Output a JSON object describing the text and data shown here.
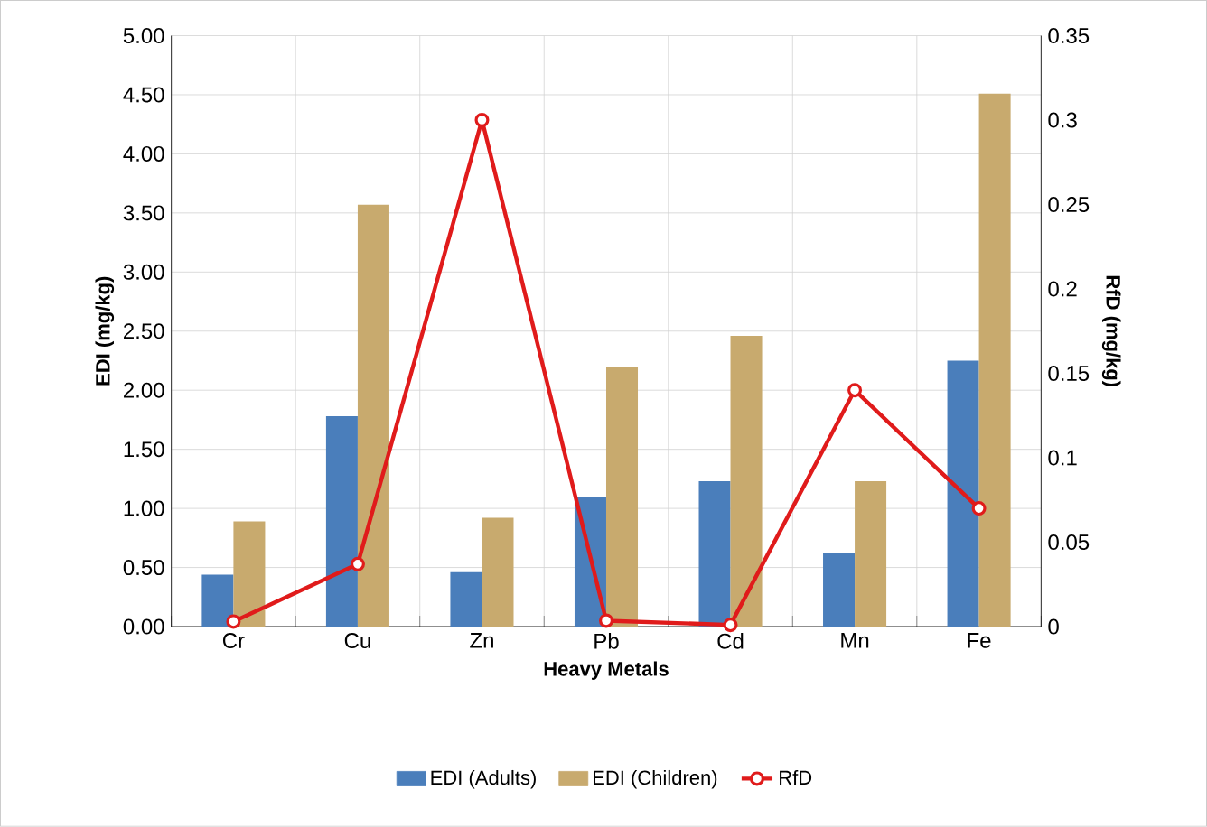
{
  "chart_data": {
    "type": "bar",
    "xlabel": "Heavy Metals",
    "ylabel": "EDI (mg/kg)",
    "y2label": "RfD (mg/kg)",
    "categories": [
      "Cr",
      "Cu",
      "Zn",
      "Pb",
      "Cd",
      "Mn",
      "Fe"
    ],
    "series": [
      {
        "name": "EDI (Adults)",
        "color": "#4a7ebb",
        "values": [
          0.44,
          1.78,
          0.46,
          1.1,
          1.23,
          0.62,
          2.25
        ]
      },
      {
        "name": "EDI (Children)",
        "color": "#c8aa6e",
        "values": [
          0.89,
          3.57,
          0.92,
          2.2,
          2.46,
          1.23,
          4.51
        ]
      },
      {
        "name": "RfD",
        "type": "line",
        "axis": "y2",
        "color": "#e01b1b",
        "marker": "circle",
        "line_style": "solid",
        "values": [
          0.003,
          0.037,
          0.3,
          0.0035,
          0.001,
          0.14,
          0.07
        ]
      }
    ],
    "ylim": [
      0,
      5
    ],
    "yticks": [
      {
        "value": 0,
        "label": "0.00"
      },
      {
        "value": 0.5,
        "label": "0.50"
      },
      {
        "value": 1,
        "label": "1.00"
      },
      {
        "value": 1.5,
        "label": "1.50"
      },
      {
        "value": 2,
        "label": "2.00"
      },
      {
        "value": 2.5,
        "label": "2.50"
      },
      {
        "value": 3,
        "label": "3.00"
      },
      {
        "value": 3.5,
        "label": "3.50"
      },
      {
        "value": 4,
        "label": "4.00"
      },
      {
        "value": 4.5,
        "label": "4.50"
      },
      {
        "value": 5,
        "label": "5.00"
      }
    ],
    "y2lim": [
      0,
      0.35
    ],
    "y2ticks": [
      0,
      0.05,
      0.1,
      0.15,
      0.2,
      0.25,
      0.3,
      0.35
    ],
    "grid": true,
    "legend": "bottom"
  }
}
